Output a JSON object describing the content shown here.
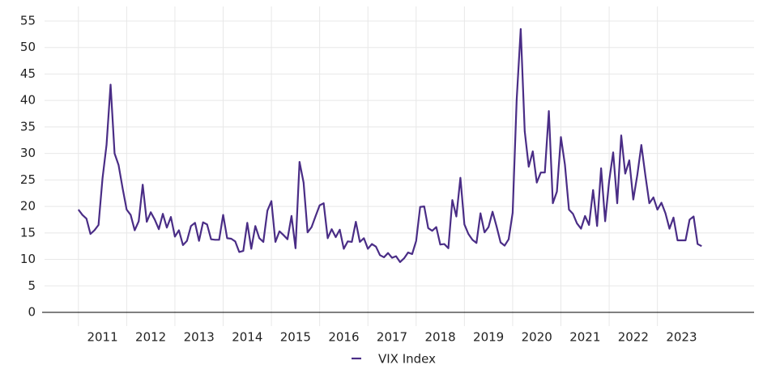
{
  "chart_data": {
    "type": "line",
    "ylim": [
      0,
      55
    ],
    "yticks": [
      0,
      5,
      10,
      15,
      20,
      25,
      30,
      35,
      40,
      45,
      50,
      55
    ],
    "xlim": [
      2010.5,
      2024.5
    ],
    "xticks": [
      2011,
      2012,
      2013,
      2014,
      2015,
      2016,
      2017,
      2018,
      2019,
      2020,
      2021,
      2022,
      2023
    ],
    "grid": true,
    "legend": "bottom",
    "x": [
      2011,
      2011.083,
      2011.167,
      2011.25,
      2011.333,
      2011.417,
      2011.5,
      2011.583,
      2011.667,
      2011.75,
      2011.833,
      2011.917,
      2012,
      2012.083,
      2012.167,
      2012.25,
      2012.333,
      2012.417,
      2012.5,
      2012.583,
      2012.667,
      2012.75,
      2012.833,
      2012.917,
      2013,
      2013.083,
      2013.167,
      2013.25,
      2013.333,
      2013.417,
      2013.5,
      2013.583,
      2013.667,
      2013.75,
      2013.833,
      2013.917,
      2014,
      2014.083,
      2014.167,
      2014.25,
      2014.333,
      2014.417,
      2014.5,
      2014.583,
      2014.667,
      2014.75,
      2014.833,
      2014.917,
      2015,
      2015.083,
      2015.167,
      2015.25,
      2015.333,
      2015.417,
      2015.5,
      2015.583,
      2015.667,
      2015.75,
      2015.833,
      2015.917,
      2016,
      2016.083,
      2016.167,
      2016.25,
      2016.333,
      2016.417,
      2016.5,
      2016.583,
      2016.667,
      2016.75,
      2016.833,
      2016.917,
      2017,
      2017.083,
      2017.167,
      2017.25,
      2017.333,
      2017.417,
      2017.5,
      2017.583,
      2017.667,
      2017.75,
      2017.833,
      2017.917,
      2018,
      2018.083,
      2018.167,
      2018.25,
      2018.333,
      2018.417,
      2018.5,
      2018.583,
      2018.667,
      2018.75,
      2018.833,
      2018.917,
      2019,
      2019.083,
      2019.167,
      2019.25,
      2019.333,
      2019.417,
      2019.5,
      2019.583,
      2019.667,
      2019.75,
      2019.833,
      2019.917,
      2020,
      2020.083,
      2020.167,
      2020.25,
      2020.333,
      2020.417,
      2020.5,
      2020.583,
      2020.667,
      2020.75,
      2020.833,
      2020.917,
      2021,
      2021.083,
      2021.167,
      2021.25,
      2021.333,
      2021.417,
      2021.5,
      2021.583,
      2021.667,
      2021.75,
      2021.833,
      2021.917,
      2022,
      2022.083,
      2022.167,
      2022.25,
      2022.333,
      2022.417,
      2022.5,
      2022.583,
      2022.667,
      2022.75,
      2022.833,
      2022.917,
      2023,
      2023.083,
      2023.167,
      2023.25,
      2023.333,
      2023.417,
      2023.5,
      2023.583,
      2023.667,
      2023.75,
      2023.833,
      2023.917
    ],
    "series": [
      {
        "name": "VIX Index",
        "color": "#4a2d86",
        "values": [
          19.4,
          18.4,
          17.7,
          14.8,
          15.5,
          16.5,
          25.3,
          31.6,
          43,
          30,
          27.8,
          23.4,
          19.4,
          18.4,
          15.5,
          17.2,
          24.1,
          17.1,
          18.9,
          17.5,
          15.7,
          18.6,
          16,
          18,
          14.3,
          15.5,
          12.7,
          13.5,
          16.3,
          16.9,
          13.5,
          17,
          16.6,
          13.8,
          13.7,
          13.7,
          18.4,
          14,
          13.9,
          13.4,
          11.4,
          11.6,
          16.9,
          12,
          16.3,
          14,
          13.3,
          19.2,
          21,
          13.3,
          15.3,
          14.6,
          13.8,
          18.2,
          12.1,
          28.4,
          24.5,
          15.1,
          16.1,
          18.2,
          20.2,
          20.6,
          14,
          15.7,
          14.2,
          15.6,
          12,
          13.4,
          13.3,
          17.1,
          13.3,
          14,
          12,
          12.9,
          12.4,
          10.8,
          10.4,
          11.2,
          10.3,
          10.6,
          9.5,
          10.2,
          11.3,
          11,
          13.5,
          19.9,
          20,
          15.9,
          15.4,
          16.1,
          12.8,
          12.9,
          12.1,
          21.2,
          18.1,
          25.4,
          16.6,
          14.8,
          13.7,
          13.1,
          18.7,
          15.1,
          16.1,
          19,
          16.2,
          13.2,
          12.6,
          13.8,
          18.8,
          40.1,
          53.5,
          34.2,
          27.5,
          30.4,
          24.5,
          26.4,
          26.4,
          38,
          20.6,
          22.8,
          33.1,
          27.9,
          19.4,
          18.6,
          16.8,
          15.8,
          18.2,
          16.5,
          23.1,
          16.3,
          27.2,
          17.2,
          24.8,
          30.2,
          20.6,
          33.4,
          26.2,
          28.7,
          21.3,
          25.9,
          31.6,
          25.9,
          20.6,
          21.7,
          19.4,
          20.7,
          18.7,
          15.8,
          17.9,
          13.6,
          13.6,
          13.6,
          17.5,
          18.1,
          12.9,
          12.5
        ]
      }
    ]
  }
}
